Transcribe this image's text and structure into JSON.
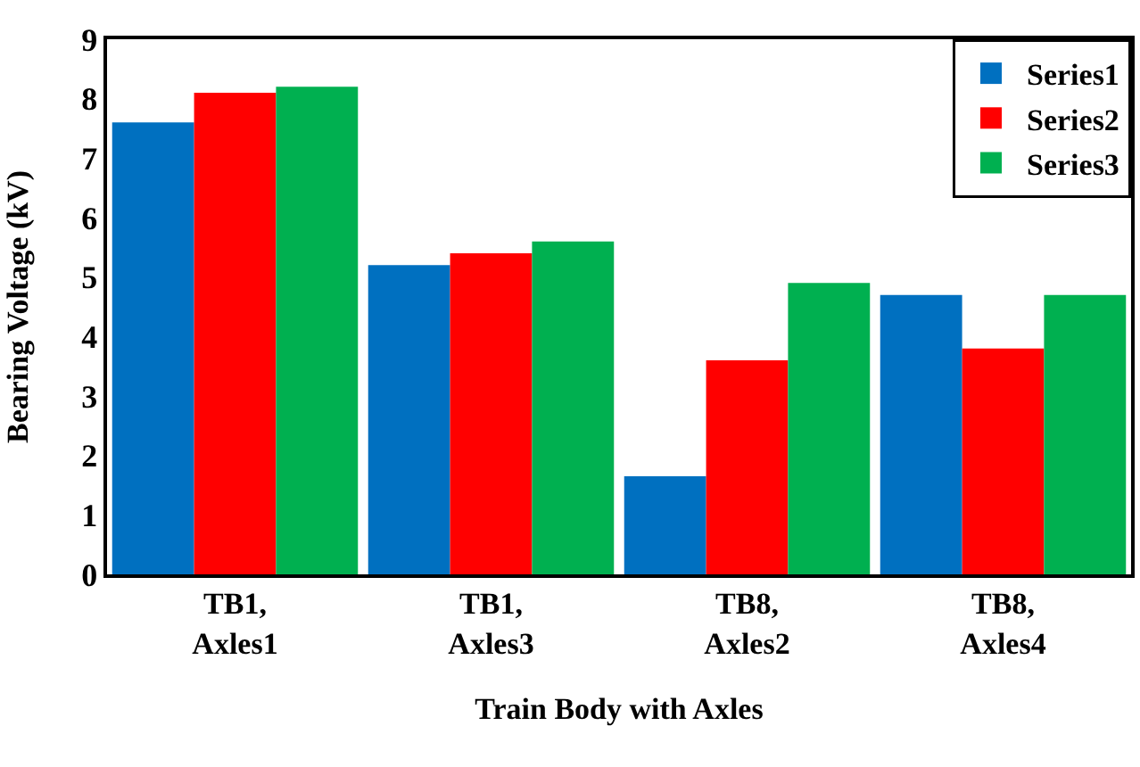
{
  "chart_data": {
    "type": "bar",
    "xlabel": "Train Body with Axles",
    "ylabel": "Bearing Voltage (kV)",
    "categories": [
      "TB1,\nAxles1",
      "TB1,\nAxles3",
      "TB8,\nAxles2",
      "TB8,\nAxles4"
    ],
    "series": [
      {
        "name": "Series1",
        "color": "#0070c0",
        "values": [
          7.6,
          5.2,
          1.65,
          4.7
        ]
      },
      {
        "name": "Series2",
        "color": "#ff0000",
        "values": [
          8.1,
          5.4,
          3.6,
          3.8
        ]
      },
      {
        "name": "Series3",
        "color": "#00b050",
        "values": [
          8.2,
          5.6,
          4.9,
          4.7
        ]
      }
    ],
    "ylim": [
      0,
      9
    ],
    "yticks": [
      0,
      1,
      2,
      3,
      4,
      5,
      6,
      7,
      8,
      9
    ],
    "grid": false,
    "legend": "top right"
  }
}
